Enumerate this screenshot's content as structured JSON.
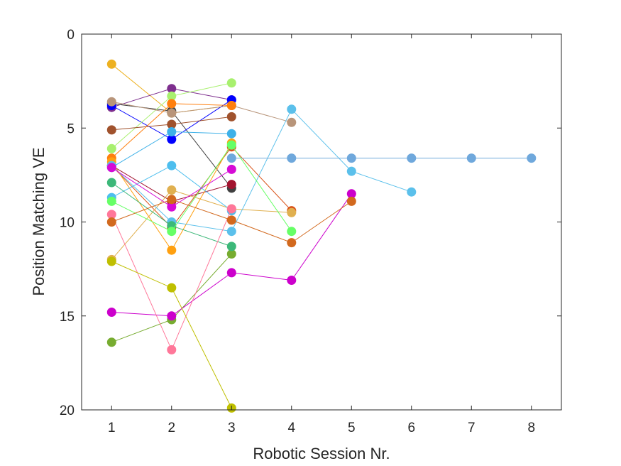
{
  "chart_data": {
    "type": "line",
    "title": "",
    "xlabel": "Robotic Session Nr.",
    "ylabel": "Position Matching VE",
    "xlim": [
      0.5,
      8.5
    ],
    "ylim": [
      0,
      20
    ],
    "y_reversed": true,
    "x_ticks": [
      1,
      2,
      3,
      4,
      5,
      6,
      7,
      8
    ],
    "y_ticks": [
      0,
      5,
      10,
      15,
      20
    ],
    "grid": false,
    "legend": "none",
    "series": [
      {
        "color": "#EDB120",
        "points": [
          [
            1,
            1.6
          ],
          [
            2,
            4.2
          ],
          [
            3,
            3.8
          ]
        ]
      },
      {
        "color": "#7E2F8E",
        "points": [
          [
            1,
            3.9
          ],
          [
            2,
            2.9
          ],
          [
            3,
            3.5
          ]
        ]
      },
      {
        "color": "#404040",
        "points": [
          [
            1,
            3.7
          ],
          [
            2,
            4.1
          ],
          [
            3,
            8.2
          ]
        ]
      },
      {
        "color": "#0000FF",
        "points": [
          [
            1,
            3.8
          ],
          [
            2,
            5.6
          ],
          [
            3,
            3.5
          ]
        ]
      },
      {
        "color": "#A8F06E",
        "points": [
          [
            1,
            6.1
          ],
          [
            2,
            3.3
          ],
          [
            3,
            2.6
          ]
        ]
      },
      {
        "color": "#B8957A",
        "points": [
          [
            1,
            3.6
          ],
          [
            2,
            4.2
          ],
          [
            3,
            3.8
          ],
          [
            4,
            4.7
          ]
        ]
      },
      {
        "color": "#A0522D",
        "points": [
          [
            1,
            5.1
          ],
          [
            2,
            4.8
          ],
          [
            3,
            4.4
          ]
        ]
      },
      {
        "color": "#FF7F0E",
        "points": [
          [
            1,
            6.6
          ],
          [
            2,
            3.7
          ],
          [
            3,
            3.8
          ]
        ]
      },
      {
        "color": "#D95319",
        "points": [
          [
            1,
            7.0
          ],
          [
            2,
            10.3
          ],
          [
            3,
            6.0
          ],
          [
            4,
            9.4
          ]
        ]
      },
      {
        "color": "#A2142F",
        "points": [
          [
            1,
            7.0
          ],
          [
            2,
            8.9
          ],
          [
            3,
            8.0
          ]
        ]
      },
      {
        "color": "#E0B050",
        "points": [
          [
            1,
            12.0
          ],
          [
            2,
            8.3
          ],
          [
            3,
            9.3
          ],
          [
            4,
            9.5
          ]
        ]
      },
      {
        "color": "#FFA010",
        "points": [
          [
            1,
            6.8
          ],
          [
            2,
            11.5
          ],
          [
            3,
            5.8
          ]
        ]
      },
      {
        "color": "#3EB1E8",
        "points": [
          [
            1,
            7.1
          ],
          [
            2,
            5.2
          ],
          [
            3,
            5.3
          ]
        ]
      },
      {
        "color": "#5BC0EB",
        "points": [
          [
            1,
            7.0
          ],
          [
            2,
            10.0
          ],
          [
            3,
            10.5
          ],
          [
            4,
            4.0
          ],
          [
            5,
            7.3
          ],
          [
            6,
            8.4
          ]
        ]
      },
      {
        "color": "#4DBEEE",
        "points": [
          [
            1,
            8.7
          ],
          [
            2,
            7.0
          ],
          [
            3,
            9.4
          ]
        ]
      },
      {
        "color": "#6FA8DC",
        "points": [
          [
            3,
            6.6
          ],
          [
            4,
            6.6
          ],
          [
            5,
            6.6
          ],
          [
            6,
            6.6
          ],
          [
            7,
            6.6
          ],
          [
            8,
            6.6
          ]
        ]
      },
      {
        "color": "#77AC30",
        "points": [
          [
            1,
            16.4
          ],
          [
            2,
            15.2
          ],
          [
            3,
            11.7
          ]
        ]
      },
      {
        "color": "#3CB879",
        "points": [
          [
            1,
            7.9
          ],
          [
            2,
            10.2
          ],
          [
            3,
            11.3
          ]
        ]
      },
      {
        "color": "#66FF66",
        "points": [
          [
            1,
            8.9
          ],
          [
            2,
            10.5
          ],
          [
            3,
            5.9
          ],
          [
            4,
            10.5
          ]
        ]
      },
      {
        "color": "#CC00CC",
        "points": [
          [
            1,
            14.8
          ],
          [
            2,
            15.0
          ],
          [
            3,
            12.7
          ],
          [
            4,
            13.1
          ],
          [
            5,
            8.5
          ]
        ]
      },
      {
        "color": "#D60BD6",
        "points": [
          [
            1,
            7.1
          ],
          [
            2,
            9.2
          ],
          [
            3,
            7.2
          ]
        ]
      },
      {
        "color": "#FF7799",
        "points": [
          [
            1,
            9.6
          ],
          [
            2,
            16.8
          ],
          [
            3,
            9.3
          ]
        ]
      },
      {
        "color": "#BFBF00",
        "points": [
          [
            1,
            12.1
          ],
          [
            2,
            13.5
          ],
          [
            3,
            19.9
          ]
        ]
      },
      {
        "color": "#D2691E",
        "points": [
          [
            1,
            10.0
          ],
          [
            2,
            8.8
          ],
          [
            3,
            9.9
          ],
          [
            4,
            11.1
          ],
          [
            5,
            8.9
          ]
        ]
      }
    ]
  }
}
